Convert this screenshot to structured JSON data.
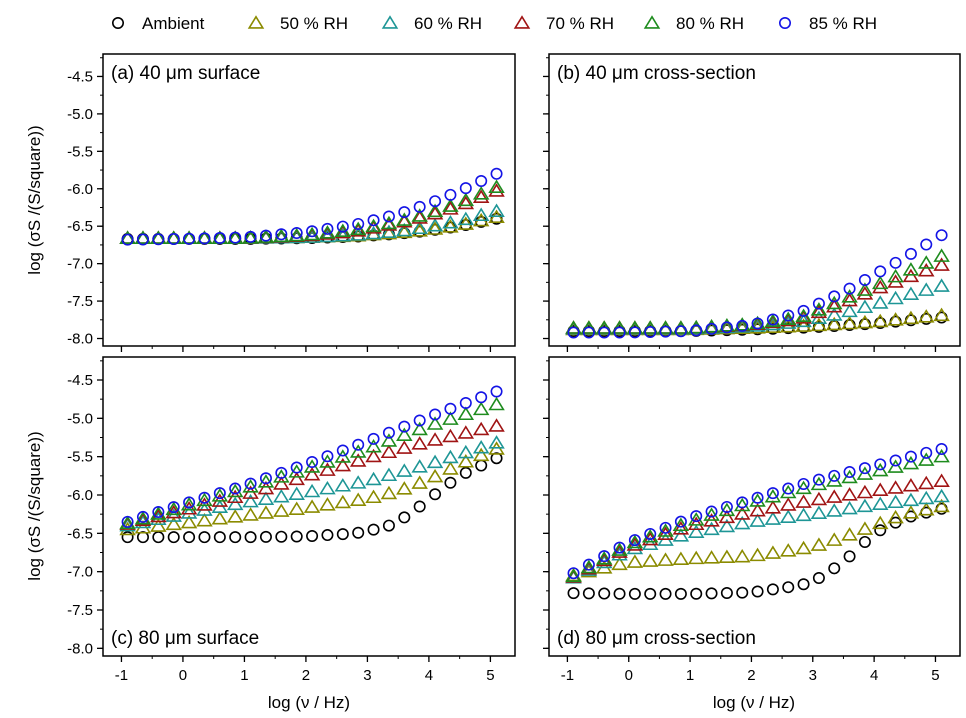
{
  "legend": [
    {
      "label": "Ambient",
      "marker": "circle",
      "color": "#000000"
    },
    {
      "label": "50 % RH",
      "marker": "triangle",
      "color": "#8B8B00"
    },
    {
      "label": "60 % RH",
      "marker": "triangle",
      "color": "#1E9696"
    },
    {
      "label": "70 % RH",
      "marker": "triangle",
      "color": "#A01414"
    },
    {
      "label": "80 % RH",
      "marker": "triangle",
      "color": "#1E8C1E"
    },
    {
      "label": "85 % RH",
      "marker": "circle",
      "color": "#1414E6"
    }
  ],
  "y_axis_title": "log (σS /(S/square))",
  "x_axis_title": "log (ν / Hz)",
  "x_ticks": [
    "-1",
    "0",
    "1",
    "2",
    "3",
    "4",
    "5"
  ],
  "y_ticks": [
    "-4.5",
    "-5.0",
    "-5.5",
    "-6.0",
    "-6.5",
    "-7.0",
    "-7.5",
    "-8.0"
  ],
  "chart_data": [
    {
      "type": "scatter",
      "panel_label": "(a) 40 μm surface",
      "xlabel": "",
      "ylabel": "log (σS /(S/square))",
      "xlim": [
        -1.3,
        5.4
      ],
      "ylim": [
        -8.1,
        -4.2
      ],
      "series": [
        {
          "name": "Ambient",
          "anchors": [
            [
              -0.9,
              -6.67
            ],
            [
              0,
              -6.67
            ],
            [
              1,
              -6.67
            ],
            [
              2,
              -6.66
            ],
            [
              2.8,
              -6.64
            ],
            [
              3.5,
              -6.6
            ],
            [
              4,
              -6.56
            ],
            [
              4.5,
              -6.5
            ],
            [
              5.1,
              -6.4
            ]
          ]
        },
        {
          "name": "50 % RH",
          "anchors": [
            [
              -0.9,
              -6.66
            ],
            [
              0,
              -6.66
            ],
            [
              1,
              -6.66
            ],
            [
              2,
              -6.65
            ],
            [
              2.8,
              -6.63
            ],
            [
              3.5,
              -6.59
            ],
            [
              4,
              -6.55
            ],
            [
              4.5,
              -6.49
            ],
            [
              5.1,
              -6.38
            ]
          ]
        },
        {
          "name": "60 % RH",
          "anchors": [
            [
              -0.9,
              -6.66
            ],
            [
              0,
              -6.66
            ],
            [
              1,
              -6.66
            ],
            [
              2,
              -6.65
            ],
            [
              2.8,
              -6.62
            ],
            [
              3.5,
              -6.57
            ],
            [
              4,
              -6.51
            ],
            [
              4.5,
              -6.43
            ],
            [
              5.1,
              -6.3
            ]
          ]
        },
        {
          "name": "70 % RH",
          "anchors": [
            [
              -0.9,
              -6.66
            ],
            [
              0,
              -6.66
            ],
            [
              1,
              -6.66
            ],
            [
              2,
              -6.63
            ],
            [
              2.8,
              -6.57
            ],
            [
              3.5,
              -6.46
            ],
            [
              4,
              -6.36
            ],
            [
              4.5,
              -6.23
            ],
            [
              5.1,
              -6.03
            ]
          ]
        },
        {
          "name": "80 % RH",
          "anchors": [
            [
              -0.9,
              -6.66
            ],
            [
              0,
              -6.66
            ],
            [
              1,
              -6.66
            ],
            [
              2,
              -6.62
            ],
            [
              2.8,
              -6.55
            ],
            [
              3.5,
              -6.44
            ],
            [
              4,
              -6.33
            ],
            [
              4.5,
              -6.19
            ],
            [
              5.1,
              -5.98
            ]
          ]
        },
        {
          "name": "85 % RH",
          "anchors": [
            [
              -0.9,
              -6.68
            ],
            [
              0,
              -6.67
            ],
            [
              1,
              -6.65
            ],
            [
              2,
              -6.58
            ],
            [
              2.8,
              -6.48
            ],
            [
              3.5,
              -6.34
            ],
            [
              4,
              -6.2
            ],
            [
              4.5,
              -6.03
            ],
            [
              5.1,
              -5.8
            ]
          ]
        }
      ]
    },
    {
      "type": "scatter",
      "panel_label": "(b) 40 μm cross-section",
      "xlabel": "",
      "ylabel": "",
      "xlim": [
        -1.3,
        5.4
      ],
      "ylim": [
        -8.1,
        -4.2
      ],
      "series": [
        {
          "name": "Ambient",
          "anchors": [
            [
              -0.9,
              -7.9
            ],
            [
              0,
              -7.9
            ],
            [
              1,
              -7.9
            ],
            [
              2,
              -7.88
            ],
            [
              3,
              -7.85
            ],
            [
              4,
              -7.8
            ],
            [
              5.1,
              -7.72
            ]
          ]
        },
        {
          "name": "50 % RH",
          "anchors": [
            [
              -0.9,
              -7.88
            ],
            [
              0,
              -7.88
            ],
            [
              1,
              -7.88
            ],
            [
              2,
              -7.86
            ],
            [
              3,
              -7.83
            ],
            [
              4,
              -7.78
            ],
            [
              5.1,
              -7.69
            ]
          ]
        },
        {
          "name": "60 % RH",
          "anchors": [
            [
              -0.9,
              -7.87
            ],
            [
              0,
              -7.87
            ],
            [
              1,
              -7.87
            ],
            [
              2,
              -7.84
            ],
            [
              2.8,
              -7.78
            ],
            [
              3.5,
              -7.66
            ],
            [
              4,
              -7.55
            ],
            [
              4.5,
              -7.43
            ],
            [
              5.1,
              -7.3
            ]
          ]
        },
        {
          "name": "70 % RH",
          "anchors": [
            [
              -0.9,
              -7.86
            ],
            [
              0,
              -7.86
            ],
            [
              1,
              -7.86
            ],
            [
              2,
              -7.82
            ],
            [
              2.8,
              -7.74
            ],
            [
              3.5,
              -7.53
            ],
            [
              4,
              -7.35
            ],
            [
              4.5,
              -7.2
            ],
            [
              5.1,
              -7.02
            ]
          ]
        },
        {
          "name": "80 % RH",
          "anchors": [
            [
              -0.9,
              -7.86
            ],
            [
              0,
              -7.86
            ],
            [
              1,
              -7.86
            ],
            [
              2,
              -7.81
            ],
            [
              2.8,
              -7.72
            ],
            [
              3.5,
              -7.48
            ],
            [
              4,
              -7.3
            ],
            [
              4.5,
              -7.12
            ],
            [
              5.1,
              -6.9
            ]
          ]
        },
        {
          "name": "85 % RH",
          "anchors": [
            [
              -0.9,
              -7.92
            ],
            [
              0,
              -7.92
            ],
            [
              1,
              -7.9
            ],
            [
              2,
              -7.82
            ],
            [
              2.8,
              -7.65
            ],
            [
              3.5,
              -7.38
            ],
            [
              4,
              -7.15
            ],
            [
              4.5,
              -6.92
            ],
            [
              5.1,
              -6.62
            ]
          ]
        }
      ]
    },
    {
      "type": "scatter",
      "panel_label": "(c) 80 μm surface",
      "xlabel": "log (ν / Hz)",
      "ylabel": "log (σS /(S/square))",
      "xlim": [
        -1.3,
        5.4
      ],
      "ylim": [
        -8.1,
        -4.2
      ],
      "series": [
        {
          "name": "Ambient",
          "anchors": [
            [
              -0.9,
              -6.55
            ],
            [
              0,
              -6.55
            ],
            [
              1,
              -6.55
            ],
            [
              2,
              -6.54
            ],
            [
              2.8,
              -6.5
            ],
            [
              3.3,
              -6.42
            ],
            [
              3.7,
              -6.25
            ],
            [
              4,
              -6.05
            ],
            [
              4.5,
              -5.75
            ],
            [
              5.1,
              -5.52
            ]
          ]
        },
        {
          "name": "50 % RH",
          "anchors": [
            [
              -0.9,
              -6.45
            ],
            [
              0,
              -6.37
            ],
            [
              1,
              -6.27
            ],
            [
              2,
              -6.17
            ],
            [
              3,
              -6.05
            ],
            [
              3.5,
              -5.95
            ],
            [
              4,
              -5.8
            ],
            [
              4.5,
              -5.6
            ],
            [
              5.1,
              -5.4
            ]
          ]
        },
        {
          "name": "60 % RH",
          "anchors": [
            [
              -0.9,
              -6.4
            ],
            [
              0,
              -6.25
            ],
            [
              1,
              -6.1
            ],
            [
              2,
              -5.97
            ],
            [
              3,
              -5.82
            ],
            [
              4,
              -5.6
            ],
            [
              5.1,
              -5.32
            ]
          ]
        },
        {
          "name": "70 % RH",
          "anchors": [
            [
              -0.9,
              -6.38
            ],
            [
              0,
              -6.2
            ],
            [
              1,
              -6.0
            ],
            [
              2,
              -5.76
            ],
            [
              3,
              -5.52
            ],
            [
              4,
              -5.3
            ],
            [
              5.1,
              -5.1
            ]
          ]
        },
        {
          "name": "80 % RH",
          "anchors": [
            [
              -0.9,
              -6.37
            ],
            [
              0,
              -6.15
            ],
            [
              1,
              -5.92
            ],
            [
              2,
              -5.66
            ],
            [
              3,
              -5.4
            ],
            [
              4,
              -5.1
            ],
            [
              5.1,
              -4.82
            ]
          ]
        },
        {
          "name": "85 % RH",
          "anchors": [
            [
              -0.9,
              -6.35
            ],
            [
              0,
              -6.12
            ],
            [
              1,
              -5.88
            ],
            [
              2,
              -5.6
            ],
            [
              3,
              -5.3
            ],
            [
              4,
              -4.98
            ],
            [
              5.1,
              -4.65
            ]
          ]
        }
      ]
    },
    {
      "type": "scatter",
      "panel_label": "(d) 80 μm cross-section",
      "xlabel": "log (ν / Hz)",
      "ylabel": "",
      "xlim": [
        -1.3,
        5.4
      ],
      "ylim": [
        -8.1,
        -4.2
      ],
      "series": [
        {
          "name": "Ambient",
          "anchors": [
            [
              -0.9,
              -7.28
            ],
            [
              0,
              -7.29
            ],
            [
              1,
              -7.29
            ],
            [
              2,
              -7.27
            ],
            [
              2.8,
              -7.18
            ],
            [
              3.2,
              -7.05
            ],
            [
              3.6,
              -6.8
            ],
            [
              4,
              -6.5
            ],
            [
              4.5,
              -6.3
            ],
            [
              5.1,
              -6.18
            ]
          ]
        },
        {
          "name": "50 % RH",
          "anchors": [
            [
              -0.9,
              -7.05
            ],
            [
              -0.3,
              -6.93
            ],
            [
              0,
              -6.88
            ],
            [
              1,
              -6.83
            ],
            [
              2,
              -6.8
            ],
            [
              3,
              -6.68
            ],
            [
              3.5,
              -6.55
            ],
            [
              4,
              -6.4
            ],
            [
              4.5,
              -6.25
            ],
            [
              5.1,
              -6.15
            ]
          ]
        },
        {
          "name": "60 % RH",
          "anchors": [
            [
              -0.9,
              -7.08
            ],
            [
              0,
              -6.72
            ],
            [
              1,
              -6.5
            ],
            [
              2,
              -6.35
            ],
            [
              3,
              -6.25
            ],
            [
              4,
              -6.13
            ],
            [
              5.1,
              -6.02
            ]
          ]
        },
        {
          "name": "70 % RH",
          "anchors": [
            [
              -0.9,
              -7.07
            ],
            [
              0,
              -6.68
            ],
            [
              1,
              -6.4
            ],
            [
              2,
              -6.22
            ],
            [
              3,
              -6.07
            ],
            [
              4,
              -5.95
            ],
            [
              5.1,
              -5.82
            ]
          ]
        },
        {
          "name": "80 % RH",
          "anchors": [
            [
              -0.9,
              -7.06
            ],
            [
              0,
              -6.65
            ],
            [
              1,
              -6.35
            ],
            [
              2,
              -6.1
            ],
            [
              3,
              -5.88
            ],
            [
              4,
              -5.7
            ],
            [
              5.1,
              -5.5
            ]
          ]
        },
        {
          "name": "85 % RH",
          "anchors": [
            [
              -0.9,
              -7.02
            ],
            [
              0,
              -6.62
            ],
            [
              1,
              -6.3
            ],
            [
              2,
              -6.06
            ],
            [
              3,
              -5.82
            ],
            [
              4,
              -5.62
            ],
            [
              5.1,
              -5.4
            ]
          ]
        }
      ]
    }
  ]
}
